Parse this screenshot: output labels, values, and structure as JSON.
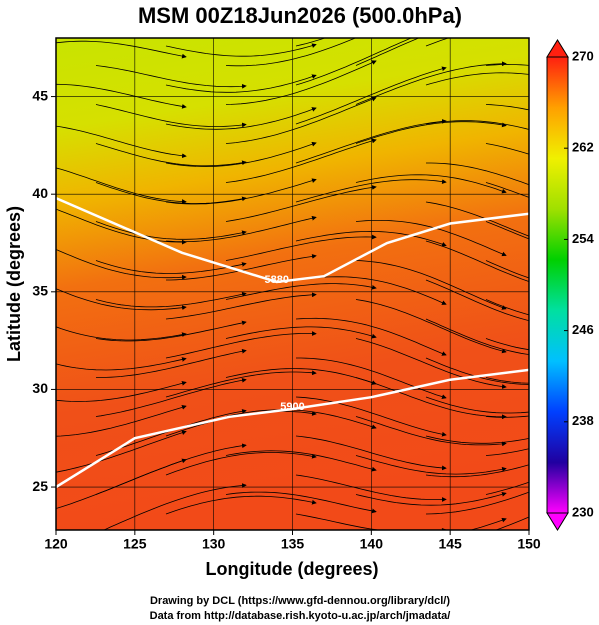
{
  "chart_data": {
    "type": "map",
    "title": "MSM 00Z18Jun2026 (500.0hPa)",
    "xlabel": "Longitude (degrees)",
    "ylabel": "Latitude  (degrees)",
    "xlim": [
      120,
      150
    ],
    "ylim": [
      22.8,
      48
    ],
    "xticks": [
      120,
      125,
      130,
      135,
      140,
      145,
      150
    ],
    "yticks": [
      25,
      30,
      35,
      40,
      45
    ],
    "grid": true,
    "contours": [
      {
        "label": "5880",
        "x": [
          120,
          128,
          134,
          137,
          141,
          145,
          150
        ],
        "y": [
          39.8,
          37,
          35.5,
          35.8,
          37.5,
          38.5,
          39
        ]
      },
      {
        "label": "5900",
        "x": [
          120,
          125,
          131,
          135,
          140,
          145,
          150
        ],
        "y": [
          25,
          27.5,
          28.6,
          29,
          29.6,
          30.5,
          31
        ]
      }
    ],
    "colorbar": {
      "lim": [
        230,
        270
      ],
      "ticks": [
        230,
        238,
        246,
        254,
        262,
        270
      ],
      "colors": [
        "#ff00ff",
        "#2000a0",
        "#0040ff",
        "#00c0ff",
        "#00e0a0",
        "#00d000",
        "#a0e000",
        "#f0f000",
        "#ffa000",
        "#ff2010"
      ]
    }
  },
  "footer": [
    "Drawing by DCL (https://www.gfd-dennou.org/library/dcl/)",
    "Data from http://database.rish.kyoto-u.ac.jp/arch/jmadata/"
  ]
}
